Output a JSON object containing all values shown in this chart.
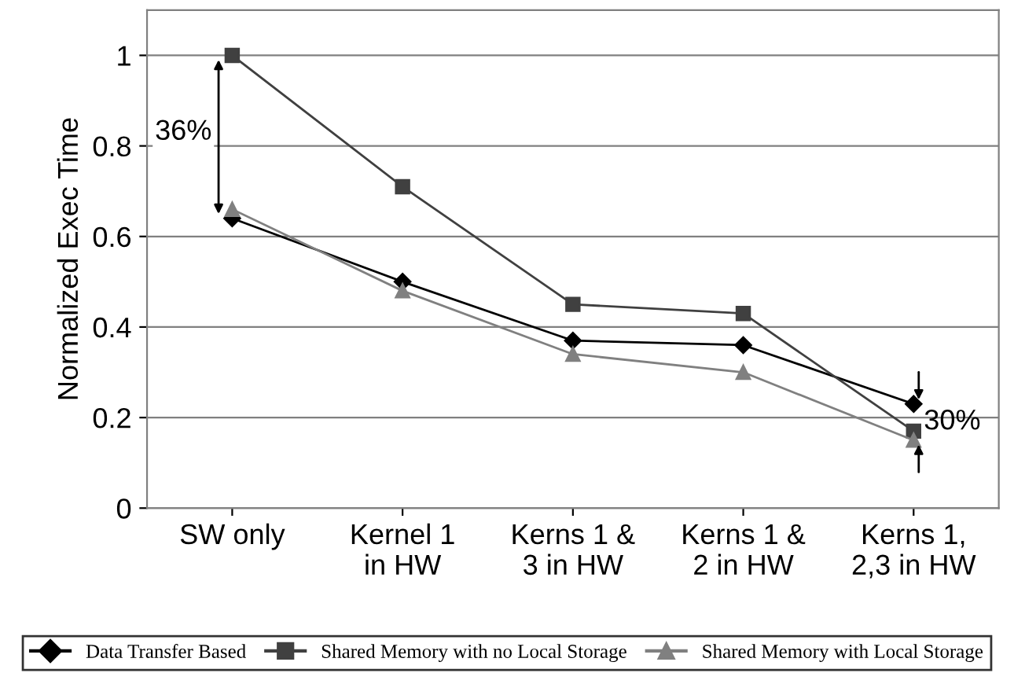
{
  "chart_data": {
    "type": "line",
    "ylabel": "Normalized Exec Time",
    "categories": [
      "SW only",
      "Kernel 1\nin HW",
      "Kerns 1 &\n3 in HW",
      "Kerns 1 &\n2 in HW",
      "Kerns 1,\n2,3 in HW"
    ],
    "series": [
      {
        "name": "Data Transfer Based",
        "color": "#000000",
        "marker": "diamond",
        "values": [
          0.64,
          0.5,
          0.37,
          0.36,
          0.23
        ]
      },
      {
        "name": "Shared Memory with no Local Storage",
        "color": "#404040",
        "marker": "square",
        "values": [
          1.0,
          0.71,
          0.45,
          0.43,
          0.17
        ]
      },
      {
        "name": "Shared Memory with Local Storage",
        "color": "#808080",
        "marker": "triangle",
        "values": [
          0.66,
          0.48,
          0.34,
          0.3,
          0.15
        ]
      }
    ],
    "ylim": [
      0,
      1.1
    ],
    "yticks": [
      0,
      0.2,
      0.4,
      0.6,
      0.8,
      1
    ],
    "grid": "y",
    "legend": "bottom",
    "annotations": [
      "36%",
      "30%"
    ]
  }
}
